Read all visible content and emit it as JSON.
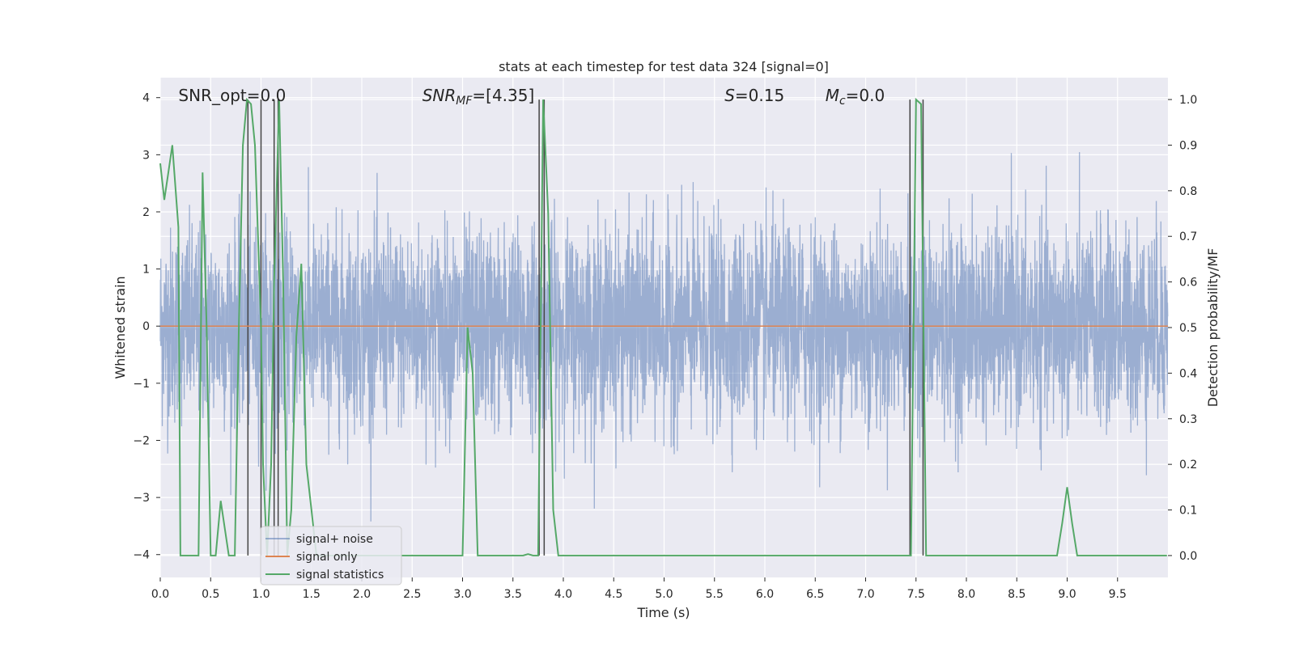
{
  "chart_data": {
    "type": "line",
    "title": "stats at each timestep for test data 324 [signal=0]",
    "xlabel": "Time (s)",
    "ylabel": "Whitened strain",
    "y2label": "Detection probability/MF",
    "xlim": [
      0.0,
      10.0
    ],
    "ylim": [
      -4.4,
      4.35
    ],
    "y2lim": [
      -0.048,
      1.048
    ],
    "xticks": [
      0.0,
      0.5,
      1.0,
      1.5,
      2.0,
      2.5,
      3.0,
      3.5,
      4.0,
      4.5,
      5.0,
      5.5,
      6.0,
      6.5,
      7.0,
      7.5,
      8.0,
      8.5,
      9.0,
      9.5
    ],
    "xtick_labels": [
      "0.0",
      "0.5",
      "1.0",
      "1.5",
      "2.0",
      "2.5",
      "3.0",
      "3.5",
      "4.0",
      "4.5",
      "5.0",
      "5.5",
      "6.0",
      "6.5",
      "7.0",
      "7.5",
      "8.0",
      "8.5",
      "9.0",
      "9.5"
    ],
    "yticks": [
      -4,
      -3,
      -2,
      -1,
      0,
      1,
      2,
      3,
      4
    ],
    "ytick_labels": [
      "−4",
      "−3",
      "−2",
      "−1",
      "0",
      "1",
      "2",
      "3",
      "4"
    ],
    "y2ticks": [
      0.0,
      0.1,
      0.2,
      0.3,
      0.4,
      0.5,
      0.6,
      0.7,
      0.8,
      0.9,
      1.0
    ],
    "y2tick_labels": [
      "0.0",
      "0.1",
      "0.2",
      "0.3",
      "0.4",
      "0.5",
      "0.6",
      "0.7",
      "0.8",
      "0.9",
      "1.0"
    ],
    "grid": true,
    "legend_position": "lower-left",
    "annotations": [
      {
        "text": "SNR_opt=0.0",
        "x": 0.18
      },
      {
        "text": "SNR",
        "sub": "MF",
        "rest": "=[4.35]",
        "x": 2.6
      },
      {
        "text": "S",
        "rest": "=0.15",
        "x": 5.6
      },
      {
        "text": "M",
        "sub": "c",
        "rest": "=0.0",
        "x": 6.6
      }
    ],
    "series": [
      {
        "name": "signal+ noise",
        "axis": "left",
        "color": "#4c72b0",
        "kind": "noise",
        "band_sigma": 0.85,
        "max_abs": 4.0,
        "points": 5000
      },
      {
        "name": "signal only",
        "axis": "left",
        "color": "#dd8452",
        "x": [
          0.0,
          10.0
        ],
        "values": [
          0.0,
          0.0
        ]
      },
      {
        "name": "signal statistics",
        "axis": "right",
        "color": "#55a868",
        "x": [
          0.0,
          0.04,
          0.08,
          0.12,
          0.18,
          0.2,
          0.25,
          0.3,
          0.38,
          0.42,
          0.46,
          0.5,
          0.55,
          0.6,
          0.68,
          0.74,
          0.78,
          0.82,
          0.86,
          0.9,
          0.94,
          1.0,
          1.02,
          1.06,
          1.1,
          1.13,
          1.18,
          1.22,
          1.26,
          1.3,
          1.35,
          1.4,
          1.45,
          1.5,
          1.55,
          1.6,
          1.65,
          3.0,
          3.02,
          3.05,
          3.1,
          3.15,
          3.6,
          3.65,
          3.7,
          3.75,
          3.8,
          3.85,
          3.9,
          3.95,
          7.4,
          7.45,
          7.5,
          7.55,
          7.6,
          7.65,
          8.9,
          8.95,
          9.0,
          9.05,
          9.1,
          9.99
        ],
        "values": [
          0.86,
          0.78,
          0.84,
          0.9,
          0.72,
          0.0,
          0.0,
          0.0,
          0.0,
          0.84,
          0.5,
          0.0,
          0.0,
          0.12,
          0.0,
          0.0,
          0.5,
          0.9,
          1.0,
          0.99,
          0.9,
          0.5,
          0.2,
          0.0,
          0.2,
          0.6,
          1.0,
          0.6,
          0.0,
          0.1,
          0.48,
          0.64,
          0.2,
          0.1,
          0.0,
          0.0,
          0.0,
          0.0,
          0.2,
          0.5,
          0.4,
          0.0,
          0.0,
          0.003,
          0.0,
          0.0,
          1.0,
          0.75,
          0.1,
          0.0,
          0.0,
          0.0,
          1.0,
          0.99,
          0.0,
          0.0,
          0.0,
          0.07,
          0.15,
          0.07,
          0.0,
          0.0
        ]
      }
    ],
    "vlines": [
      {
        "color": "#444444",
        "x": [
          0.87,
          1.0,
          1.13,
          1.17,
          3.76,
          3.81,
          7.44,
          7.57
        ]
      }
    ]
  }
}
